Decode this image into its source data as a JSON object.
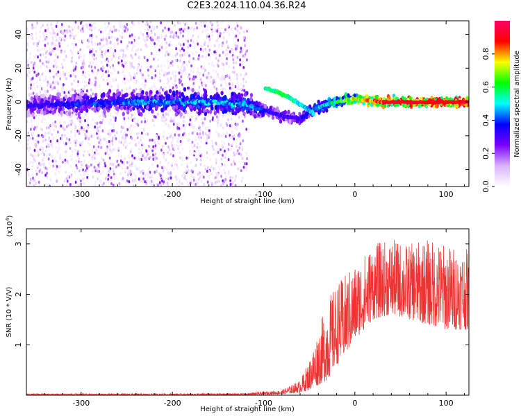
{
  "title": "C2E3.2024.110.04.36.R24",
  "chart_data": [
    {
      "type": "heatmap",
      "xlabel": "Height of straight line (km)",
      "ylabel": "Frequency (Hz)",
      "xlim": [
        -360,
        125
      ],
      "ylim": [
        -50,
        48
      ],
      "xticks": [
        -300,
        -200,
        -100,
        0,
        100
      ],
      "yticks": [
        -40,
        -20,
        0,
        20,
        40
      ],
      "grid": false,
      "colorbar": {
        "label": "Normalized spectral amplitude",
        "range": [
          0,
          1
        ],
        "ticks": [
          "0.0",
          "0.2",
          "0.4",
          "0.6",
          "0.8"
        ],
        "colors": [
          "#ffffff",
          "#d9b3ff",
          "#7a00ff",
          "#0000ff",
          "#00ffff",
          "#00ff00",
          "#ffff00",
          "#ff0000",
          "#ff0066"
        ]
      },
      "ridge": [
        {
          "x": -360,
          "y": -2,
          "amp": 0.3
        },
        {
          "x": -300,
          "y": -1,
          "amp": 0.35
        },
        {
          "x": -250,
          "y": 0,
          "amp": 0.4
        },
        {
          "x": -200,
          "y": 0,
          "amp": 0.42
        },
        {
          "x": -150,
          "y": 0,
          "amp": 0.45
        },
        {
          "x": -120,
          "y": -2,
          "amp": 0.45
        },
        {
          "x": -100,
          "y": -5,
          "amp": 0.35
        },
        {
          "x": -80,
          "y": -8,
          "amp": 0.3
        },
        {
          "x": -60,
          "y": -10,
          "amp": 0.3
        },
        {
          "x": -50,
          "y": -6,
          "amp": 0.35
        },
        {
          "x": -40,
          "y": -3,
          "amp": 0.45
        },
        {
          "x": -20,
          "y": 0,
          "amp": 0.55
        },
        {
          "x": 0,
          "y": 2,
          "amp": 0.7
        },
        {
          "x": 30,
          "y": 0,
          "amp": 0.9
        },
        {
          "x": 125,
          "y": 0,
          "amp": 0.95
        }
      ],
      "secondary_ridge": [
        {
          "x": -98,
          "y": 8,
          "amp": 0.55
        },
        {
          "x": -85,
          "y": 6,
          "amp": 0.6
        },
        {
          "x": -70,
          "y": 2,
          "amp": 0.55
        },
        {
          "x": -55,
          "y": -3,
          "amp": 0.5
        },
        {
          "x": -45,
          "y": -7,
          "amp": 0.45
        }
      ]
    },
    {
      "type": "line",
      "xlabel": "Height of straight line (km)",
      "ylabel": "SNR (10 * V/V)",
      "y_multiplier": "(x10",
      "y_multiplier_exp": "4",
      "y_multiplier_close": ")",
      "xlim": [
        -360,
        125
      ],
      "ylim": [
        0,
        3.3
      ],
      "xticks": [
        -300,
        -200,
        -100,
        0,
        100
      ],
      "yticks": [
        1,
        2,
        3
      ],
      "color": "#ee3333",
      "envelope": [
        {
          "x": -360,
          "low": 0.0,
          "high": 0.03
        },
        {
          "x": -200,
          "low": 0.0,
          "high": 0.03
        },
        {
          "x": -120,
          "low": 0.0,
          "high": 0.04
        },
        {
          "x": -80,
          "low": 0.02,
          "high": 0.1
        },
        {
          "x": -60,
          "low": 0.05,
          "high": 0.3
        },
        {
          "x": -50,
          "low": 0.1,
          "high": 0.7
        },
        {
          "x": -40,
          "low": 0.2,
          "high": 1.3
        },
        {
          "x": -30,
          "low": 0.3,
          "high": 1.9
        },
        {
          "x": -20,
          "low": 0.6,
          "high": 2.2
        },
        {
          "x": -10,
          "low": 0.8,
          "high": 2.4
        },
        {
          "x": 0,
          "low": 1.1,
          "high": 2.6
        },
        {
          "x": 20,
          "low": 1.5,
          "high": 3.0
        },
        {
          "x": 40,
          "low": 1.6,
          "high": 3.1
        },
        {
          "x": 60,
          "low": 1.5,
          "high": 3.0
        },
        {
          "x": 80,
          "low": 1.4,
          "high": 3.1
        },
        {
          "x": 100,
          "low": 1.3,
          "high": 3.0
        },
        {
          "x": 125,
          "low": 1.3,
          "high": 2.9
        }
      ]
    }
  ]
}
